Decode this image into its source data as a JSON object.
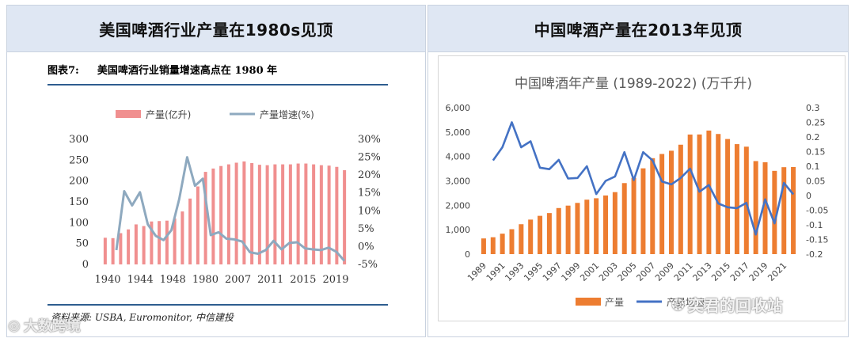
{
  "headers": {
    "left": "美国啤酒行业产量在1980s见顶",
    "right": "中国啤酒产量在2013年见顶"
  },
  "left_figure": {
    "label": "图表7:",
    "title": "美国啤酒行业销量增速高点在 1980 年",
    "source": "资料来源: USBA, Euromonitor, 中信建投"
  },
  "watermarks": {
    "left": "大数跨境",
    "right": "奕君的回收站"
  },
  "colors": {
    "left_bar": "#f08f8f",
    "left_line": "#8ea9bf",
    "right_bar": "#ed7d31",
    "right_line": "#4472c4",
    "header_bg": "#dfe7f3",
    "rule": "#2e5d8f"
  },
  "chart_data": [
    {
      "type": "bar+line",
      "legend": [
        "产量(亿升)",
        "产量增速(%)"
      ],
      "x_labels": [
        "1940",
        "1944",
        "1948",
        "1980",
        "2007",
        "2011",
        "2015",
        "2019"
      ],
      "values": [
        64,
        63,
        75,
        84,
        96,
        92,
        103,
        104,
        105,
        110,
        127,
        158,
        187,
        222,
        230,
        236,
        240,
        244,
        247,
        243,
        239,
        238,
        240,
        240,
        240,
        242,
        242,
        240,
        238,
        237,
        234,
        226
      ],
      "growth": [
        -1,
        15.5,
        11.5,
        15.2,
        6.2,
        3,
        1.8,
        4.6,
        13.3,
        25,
        17,
        19,
        3.2,
        4,
        2.2,
        2,
        1.4,
        -1.6,
        -2,
        -1,
        1.6,
        -0.8,
        1,
        1.2,
        -0.5,
        -0.8,
        -1,
        -0.3,
        -1.5,
        -4
      ],
      "y_left": {
        "min": 0,
        "max": 300,
        "ticks": [
          "0",
          "50",
          "100",
          "150",
          "200",
          "250",
          "300"
        ]
      },
      "y_right": {
        "min": -5,
        "max": 30,
        "ticks": [
          "-5%",
          "0%",
          "5%",
          "10%",
          "15%",
          "20%",
          "25%",
          "30%"
        ]
      }
    },
    {
      "type": "bar+line",
      "title": "中国啤酒年产量 (1989-2022) (万千升)",
      "legend": [
        "产量",
        "产量增速"
      ],
      "years": [
        1989,
        1990,
        1991,
        1992,
        1993,
        1994,
        1995,
        1996,
        1997,
        1998,
        1999,
        2000,
        2001,
        2002,
        2003,
        2004,
        2005,
        2006,
        2007,
        2008,
        2009,
        2010,
        2011,
        2012,
        2013,
        2014,
        2015,
        2016,
        2017,
        2018,
        2019,
        2020,
        2021,
        2022
      ],
      "x_labels": [
        "1989",
        "1991",
        "1993",
        "1995",
        "1997",
        "1999",
        "2001",
        "2003",
        "2005",
        "2007",
        "2009",
        "2011",
        "2013",
        "2015",
        "2017",
        "2019",
        "2021"
      ],
      "production": [
        643,
        692,
        838,
        1021,
        1225,
        1415,
        1569,
        1682,
        1888,
        1988,
        2099,
        2231,
        2289,
        2403,
        2540,
        2910,
        3126,
        3515,
        3931,
        4103,
        4236,
        4483,
        4899,
        4902,
        5062,
        4922,
        4716,
        4506,
        4402,
        3812,
        3765,
        3411,
        3562,
        3569
      ],
      "growth": [
        0.12,
        0.165,
        0.25,
        0.165,
        0.185,
        0.095,
        0.09,
        0.122,
        0.058,
        0.06,
        0.1,
        0.005,
        0.05,
        0.065,
        0.148,
        0.053,
        0.148,
        0.12,
        0.048,
        0.038,
        0.06,
        0.092,
        0.013,
        0.036,
        -0.027,
        -0.04,
        -0.043,
        -0.025,
        -0.133,
        -0.013,
        -0.095,
        0.043,
        0.004
      ],
      "y_left": {
        "min": 0,
        "max": 6000,
        "ticks": [
          "0",
          "1,000",
          "2,000",
          "3,000",
          "4,000",
          "5,000",
          "6,000"
        ]
      },
      "y_right": {
        "min": -0.2,
        "max": 0.3,
        "ticks": [
          "-0.2",
          "-0.15",
          "-0.1",
          "-0.05",
          "0",
          "0.05",
          "0.1",
          "0.15",
          "0.2",
          "0.25",
          "0.3"
        ]
      }
    }
  ]
}
